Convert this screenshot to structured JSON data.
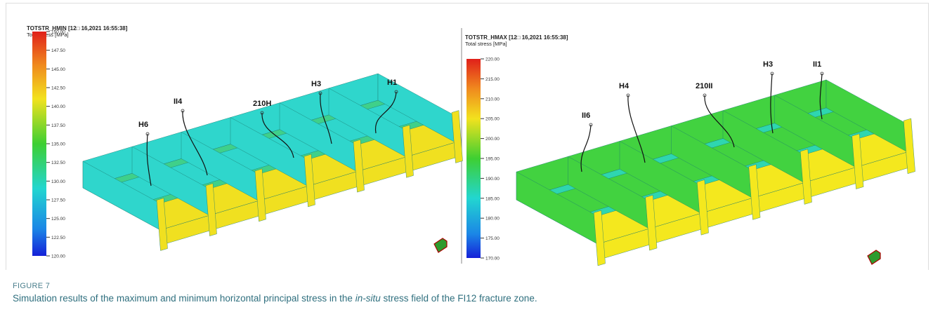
{
  "panels": [
    {
      "title": "TOTSTR_HMIN [12□ 16,2021 16:55:38]",
      "subtitle": "Total stress [MPa]",
      "colorbar_ticks": [
        "150.00",
        "147.50",
        "145.00",
        "142.50",
        "140.00",
        "137.50",
        "135.00",
        "132.50",
        "130.00",
        "127.50",
        "125.00",
        "122.50",
        "120.00"
      ],
      "wells": [
        "H6",
        "II4",
        "210H",
        "H3",
        "H1"
      ]
    },
    {
      "title": "TOTSTR_HMAX [12□ 16,2021 16:55:38]",
      "subtitle": "Total stress [MPa]",
      "colorbar_ticks": [
        "220.00",
        "215.00",
        "210.00",
        "205.00",
        "200.00",
        "195.00",
        "190.00",
        "185.00",
        "180.00",
        "175.00",
        "170.00"
      ],
      "wells": [
        "II6",
        "H4",
        "210II",
        "H3",
        "II1"
      ]
    }
  ],
  "caption": {
    "label": "FIGURE 7",
    "text_before": "Simulation results of the maximum and minimum horizontal principal stress in the ",
    "text_italic": "in-situ",
    "text_after": " stress field of the FI12 fracture zone."
  }
}
